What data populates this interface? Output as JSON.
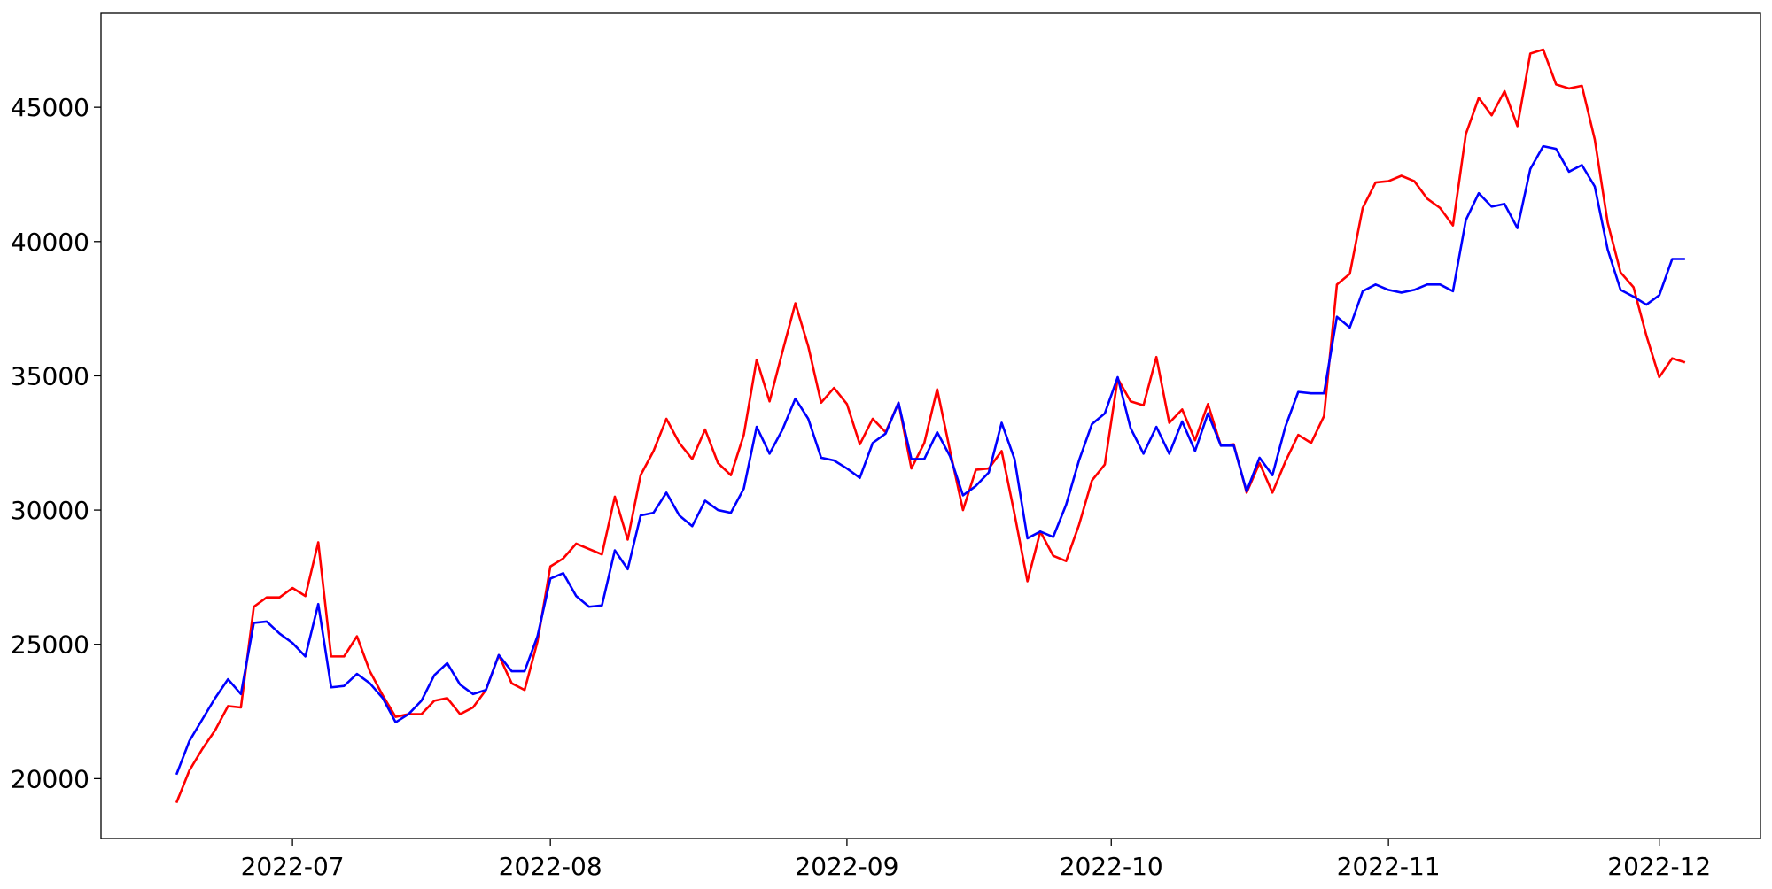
{
  "chart_data": {
    "type": "line",
    "xlim": [
      -5.85,
      122.85
    ],
    "xticks": [
      {
        "value": 9,
        "label": "2022-07"
      },
      {
        "value": 29,
        "label": "2022-08"
      },
      {
        "value": 52,
        "label": "2022-09"
      },
      {
        "value": 72.5,
        "label": "2022-10"
      },
      {
        "value": 94,
        "label": "2022-11"
      },
      {
        "value": 115,
        "label": "2022-12"
      }
    ],
    "ylim": [
      17770,
      48500
    ],
    "yticks": [
      20000,
      25000,
      30000,
      35000,
      40000,
      45000
    ],
    "grid": false,
    "series": [
      {
        "color": "#ff0000",
        "values": [
          19100,
          20300,
          21100,
          21800,
          22700,
          22650,
          26400,
          26750,
          26750,
          27100,
          26800,
          28800,
          24550,
          24550,
          25300,
          24000,
          23100,
          22300,
          22400,
          22400,
          22900,
          23000,
          22400,
          22650,
          23300,
          24600,
          23550,
          23300,
          25100,
          27900,
          28200,
          28750,
          28550,
          28350,
          30500,
          28900,
          31300,
          32200,
          33400,
          32500,
          31900,
          33000,
          31750,
          31300,
          32800,
          35600,
          34050,
          35900,
          37700,
          36100,
          34000,
          34550,
          33950,
          32450,
          33400,
          32900,
          34000,
          31550,
          32500,
          34500,
          32200,
          30000,
          31500,
          31550,
          32200,
          29850,
          27350,
          29200,
          28300,
          28100,
          29450,
          31100,
          31700,
          34900,
          34050,
          33900,
          35700,
          33250,
          33750,
          32600,
          33950,
          32400,
          32450,
          30650,
          31750,
          30650,
          31800,
          32800,
          32500,
          33500,
          38400,
          38800,
          41250,
          42200,
          42250,
          42450,
          42250,
          41600,
          41250,
          40600,
          44000,
          45350,
          44700,
          45600,
          44300,
          47000,
          47150,
          45850,
          45700,
          45800,
          43800,
          40700,
          38850,
          38300,
          36500,
          34950,
          35650,
          35500
        ]
      },
      {
        "color": "#0000ff",
        "values": [
          20150,
          21400,
          22200,
          23000,
          23700,
          23150,
          25800,
          25850,
          25400,
          25050,
          24550,
          26500,
          23400,
          23450,
          23900,
          23550,
          23000,
          22100,
          22400,
          22900,
          23850,
          24300,
          23500,
          23150,
          23300,
          24600,
          24000,
          24000,
          25300,
          27450,
          27650,
          26800,
          26400,
          26450,
          28500,
          27800,
          29800,
          29900,
          30650,
          29800,
          29400,
          30350,
          30000,
          29900,
          30800,
          33100,
          32100,
          33000,
          34150,
          33400,
          31950,
          31850,
          31550,
          31200,
          32500,
          32850,
          34000,
          31900,
          31900,
          32900,
          32000,
          30550,
          30900,
          31400,
          33250,
          31900,
          28950,
          29200,
          29000,
          30200,
          31850,
          33200,
          33600,
          34950,
          33050,
          32100,
          33100,
          32100,
          33300,
          32200,
          33600,
          32400,
          32400,
          30700,
          31950,
          31300,
          33100,
          34400,
          34350,
          34350,
          37200,
          36800,
          38150,
          38400,
          38200,
          38100,
          38200,
          38400,
          38400,
          38150,
          40800,
          41800,
          41300,
          41400,
          40500,
          42700,
          43550,
          43450,
          42600,
          42850,
          42050,
          39700,
          38200,
          37950,
          37650,
          38000,
          39350,
          39350
        ]
      }
    ]
  }
}
